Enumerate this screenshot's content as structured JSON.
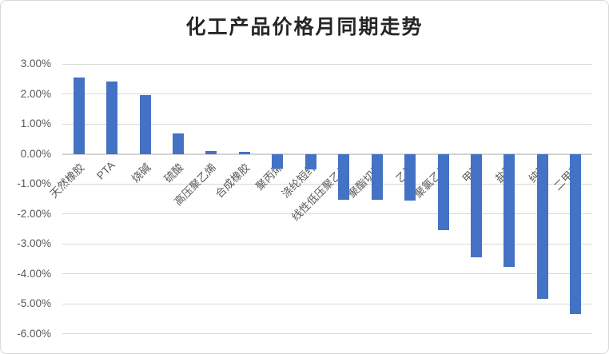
{
  "chart_data": {
    "type": "bar",
    "title": "化工产品价格月同期走势",
    "categories": [
      "天然橡胶",
      "PTA",
      "烧碱",
      "硫酸",
      "高压聚乙烯",
      "合成橡胶",
      "聚丙烯",
      "涤纶短纤",
      "线性低压聚乙烯",
      "聚酯切片",
      "乙醇",
      "聚氯乙烯",
      "甲醇",
      "盐酸",
      "纯碱",
      "二甲苯"
    ],
    "values": [
      2.55,
      2.42,
      1.95,
      0.68,
      0.1,
      0.07,
      -0.48,
      -0.52,
      -1.52,
      -1.53,
      -1.55,
      -2.55,
      -3.45,
      -3.78,
      -4.85,
      -5.35
    ],
    "unit": "%",
    "xlabel": "",
    "ylabel": "",
    "ylim": [
      -6,
      3
    ],
    "ytick_step": 1,
    "ytick_labels": [
      "3.00%",
      "2.00%",
      "1.00%",
      "0.00%",
      "-1.00%",
      "-2.00%",
      "-3.00%",
      "-4.00%",
      "-5.00%",
      "-6.00%"
    ],
    "grid": true,
    "legend": false,
    "bar_color": "#4472C4"
  },
  "colors": {
    "bar": "#4472C4",
    "gridline": "#d9d9d9",
    "zero_axis": "#d4d4d4",
    "tick_text": "#595959",
    "title_text": "#262626",
    "background": "#ffffff",
    "border": "#d9d9d9"
  }
}
